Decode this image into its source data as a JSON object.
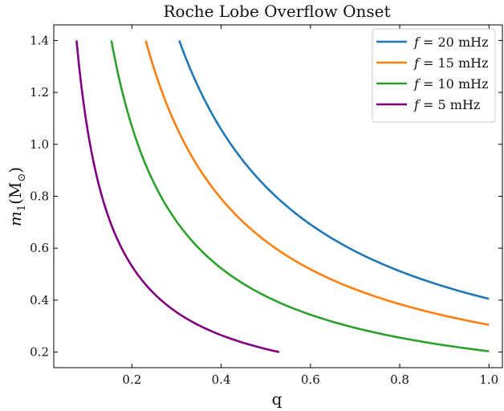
{
  "chart_data": {
    "type": "line",
    "title": "Roche Lobe Overflow Onset",
    "xlabel": "q",
    "ylabel_main": "m",
    "ylabel_sub": "1",
    "ylabel_unit": "(M",
    "ylabel_unit_sub": "⊙",
    "ylabel_close": ")",
    "xlim": [
      0.025,
      1.03
    ],
    "ylim": [
      0.14,
      1.46
    ],
    "xticks": [
      0.2,
      0.4,
      0.6,
      0.8,
      1.0
    ],
    "xtick_labels": [
      "0.2",
      "0.4",
      "0.6",
      "0.8",
      "1.0"
    ],
    "yticks": [
      0.2,
      0.4,
      0.6,
      0.8,
      1.0,
      1.2,
      1.4
    ],
    "ytick_labels": [
      "0.2",
      "0.4",
      "0.6",
      "0.8",
      "1.0",
      "1.2",
      "1.4"
    ],
    "grid": false,
    "legend_position": "top-right",
    "series": [
      {
        "name": "f = 20 mHz",
        "legend_var": "f",
        "legend_rest": " = 20 mHz",
        "color": "#1f77b4",
        "x_start": 0.306,
        "x_end": 1.0,
        "y_start": 1.4,
        "y_end": 0.405
      },
      {
        "name": "f = 15 mHz",
        "legend_var": "f",
        "legend_rest": " = 15 mHz",
        "color": "#ff7f0e",
        "x_start": 0.231,
        "x_end": 1.0,
        "y_start": 1.4,
        "y_end": 0.305
      },
      {
        "name": "f = 10 mHz",
        "legend_var": "f",
        "legend_rest": " = 10 mHz",
        "color": "#2ca02c",
        "x_start": 0.154,
        "x_end": 1.0,
        "y_start": 1.4,
        "y_end": 0.203
      },
      {
        "name": "f = 5 mHz",
        "legend_var": "f",
        "legend_rest": " = 5 mHz",
        "color": "#800080",
        "x_start": 0.076,
        "x_end": 0.53,
        "y_start": 1.4,
        "y_end": 0.2
      }
    ]
  }
}
